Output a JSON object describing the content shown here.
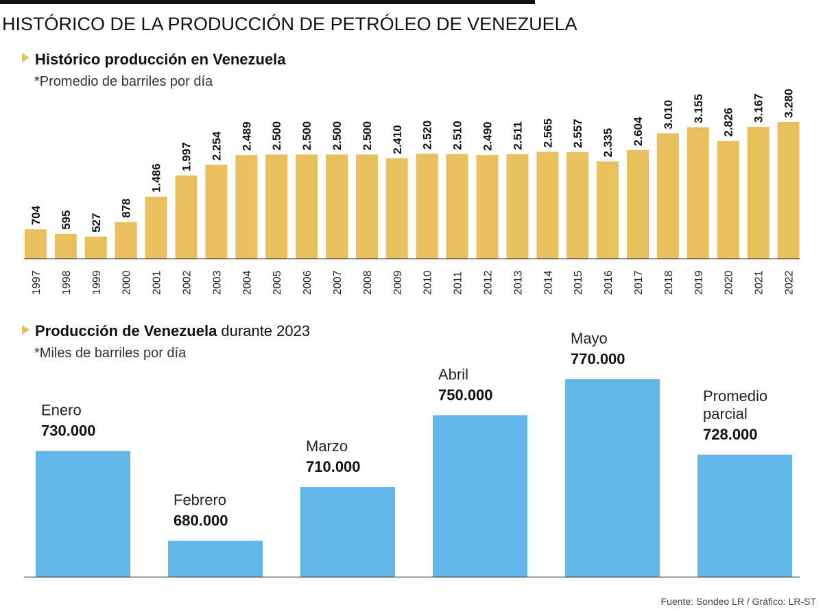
{
  "title": "HISTÓRICO DE LA PRODUCCIÓN DE PETRÓLEO DE VENEZUELA",
  "source": "Fuente: Sondeo LR  / Gráfico: LR-ST",
  "colors": {
    "gold": "#e9c05e",
    "blue": "#62b6e8",
    "marker": "#e9c05e"
  },
  "chart_data": [
    {
      "type": "bar",
      "title": "Histórico producción en Venezuela",
      "subtitle": "*Promedio de barriles por día",
      "categories": [
        "1997",
        "1998",
        "1999",
        "2000",
        "2001",
        "2002",
        "2003",
        "2004",
        "2005",
        "2006",
        "2007",
        "2008",
        "2009",
        "2010",
        "2011",
        "2012",
        "2013",
        "2014",
        "2015",
        "2016",
        "2017",
        "2018",
        "2019",
        "2020",
        "2021",
        "2022"
      ],
      "values": [
        704,
        595,
        527,
        878,
        1486,
        1997,
        2254,
        2489,
        2500,
        2500,
        2500,
        2500,
        2410,
        2520,
        2510,
        2490,
        2511,
        2565,
        2557,
        2335,
        2604,
        3010,
        3155,
        2826,
        3167,
        3280
      ],
      "labels": [
        "704",
        "595",
        "527",
        "878",
        "1.486",
        "1.997",
        "2.254",
        "2.489",
        "2.500",
        "2.500",
        "2.500",
        "2.500",
        "2.410",
        "2.520",
        "2.510",
        "2.490",
        "2.511",
        "2.565",
        "2.557",
        "2.335",
        "2.604",
        "3.010",
        "3.155",
        "2.826",
        "3.167",
        "3.280"
      ],
      "ylim": [
        0,
        3280
      ],
      "grid": false,
      "color": "#e9c05e"
    },
    {
      "type": "bar",
      "title_parts": [
        "Producción de ",
        "Venezuela",
        " durante 2023"
      ],
      "subtitle": "*Miles de barriles por día",
      "categories": [
        [
          "Enero"
        ],
        [
          "Febrero"
        ],
        [
          "Marzo"
        ],
        [
          "Abril"
        ],
        [
          "Mayo"
        ],
        [
          "Promedio",
          "parcial"
        ]
      ],
      "values": [
        730000,
        680000,
        710000,
        750000,
        770000,
        728000
      ],
      "labels": [
        "730.000",
        "680.000",
        "710.000",
        "750.000",
        "770.000",
        "728.000"
      ],
      "ylim": [
        660000,
        770000
      ],
      "grid": false,
      "color": "#62b6e8"
    }
  ]
}
